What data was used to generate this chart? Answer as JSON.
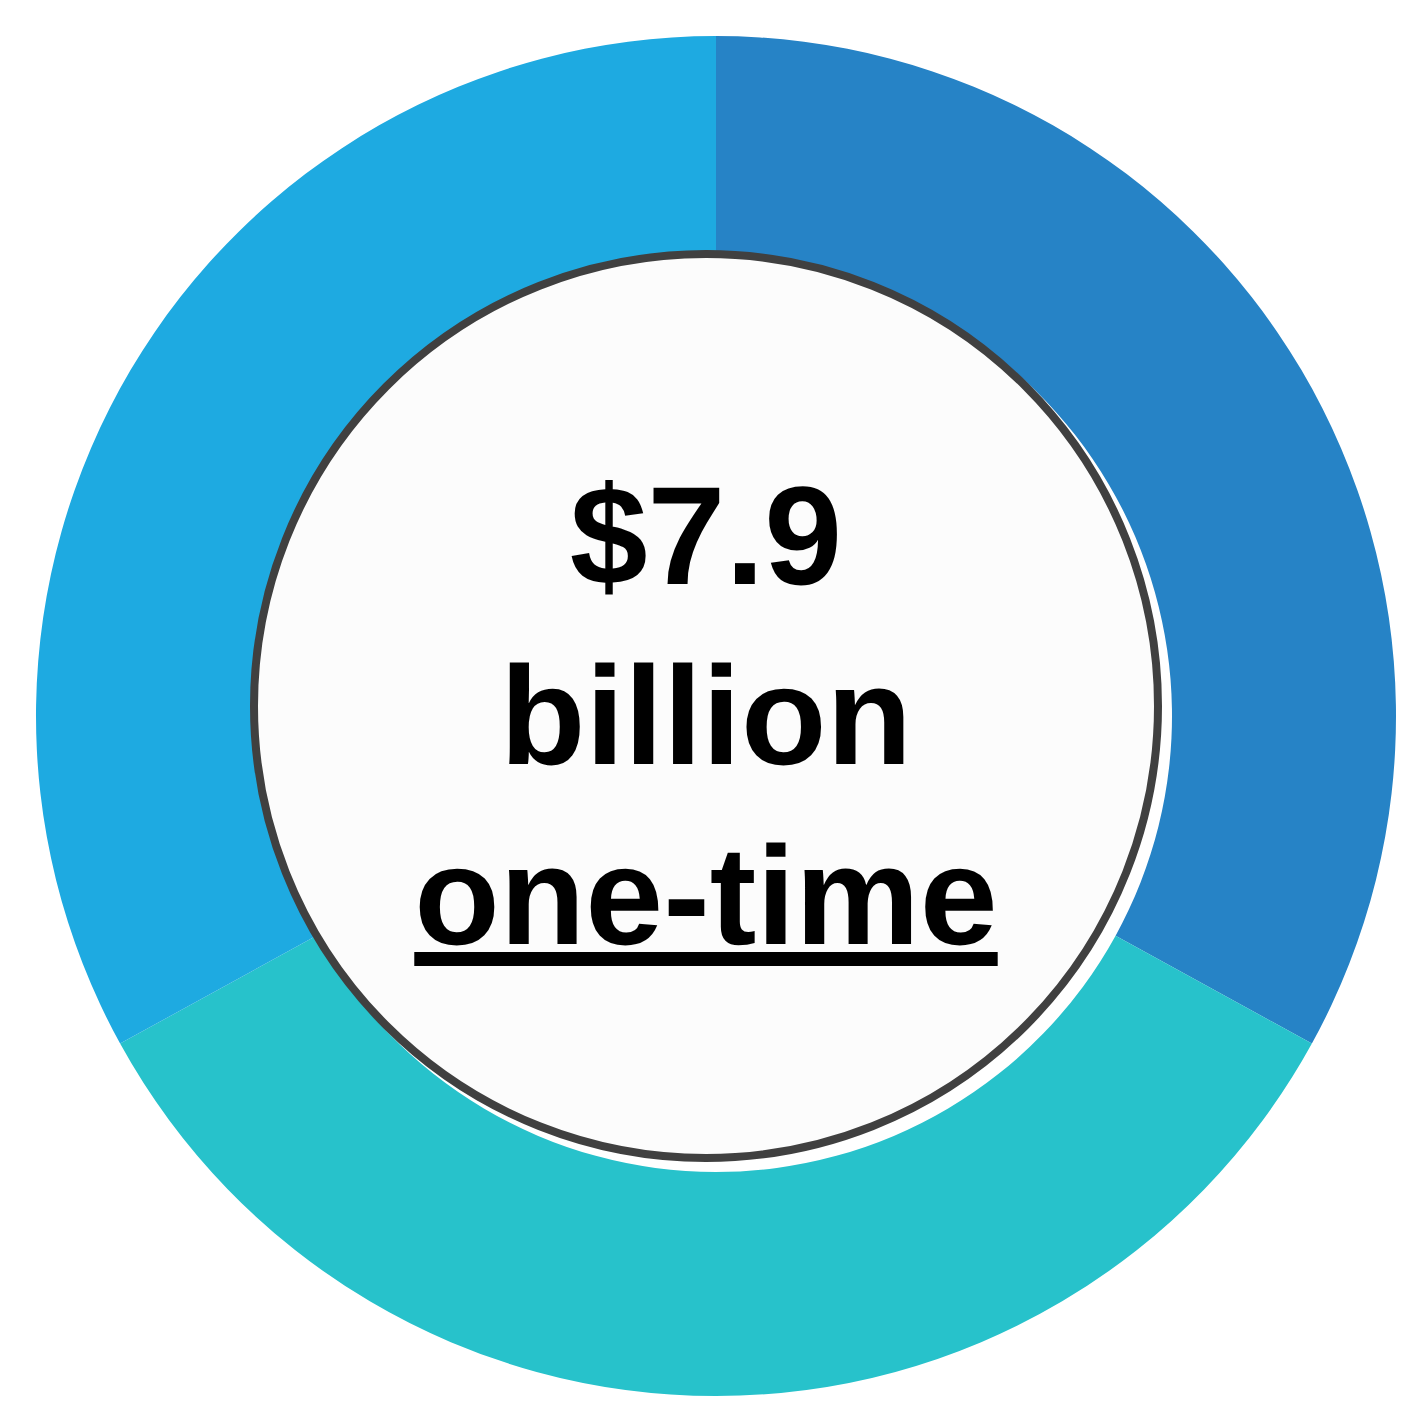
{
  "chart_data": {
    "type": "donut",
    "categories": [
      null,
      null,
      null
    ],
    "values": [
      33,
      34,
      33
    ],
    "colors": [
      "#2683c6",
      "#27c2cb",
      "#1eaae1"
    ],
    "annotations": [
      "$7.9",
      "billion",
      "one-time"
    ]
  }
}
